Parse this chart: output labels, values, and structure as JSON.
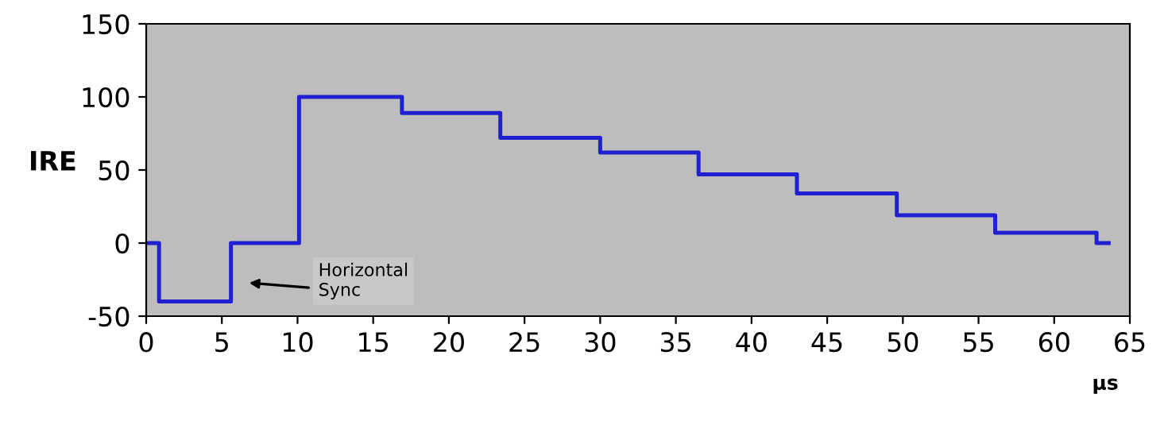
{
  "chart_data": {
    "type": "step",
    "xlabel": "µs",
    "ylabel": "IRE",
    "x": [
      0,
      0.85,
      5.6,
      10.1,
      16.9,
      23.4,
      30.0,
      36.5,
      43.0,
      49.6,
      56.1,
      62.8,
      63.6
    ],
    "series": [
      {
        "color": "#2020d0",
        "values": [
          0,
          -40,
          0,
          100,
          89,
          72,
          62,
          47,
          34,
          19,
          7,
          0,
          0
        ]
      }
    ],
    "xlim": [
      0,
      65
    ],
    "xticks": [
      0,
      5,
      10,
      15,
      20,
      25,
      30,
      35,
      40,
      45,
      50,
      55,
      60,
      65
    ],
    "ylim": [
      -50,
      150
    ],
    "yticks": [
      -50,
      0,
      50,
      100,
      150
    ],
    "annotations": [
      "Horizontal\nSync"
    ],
    "grid": false,
    "legend": false
  }
}
